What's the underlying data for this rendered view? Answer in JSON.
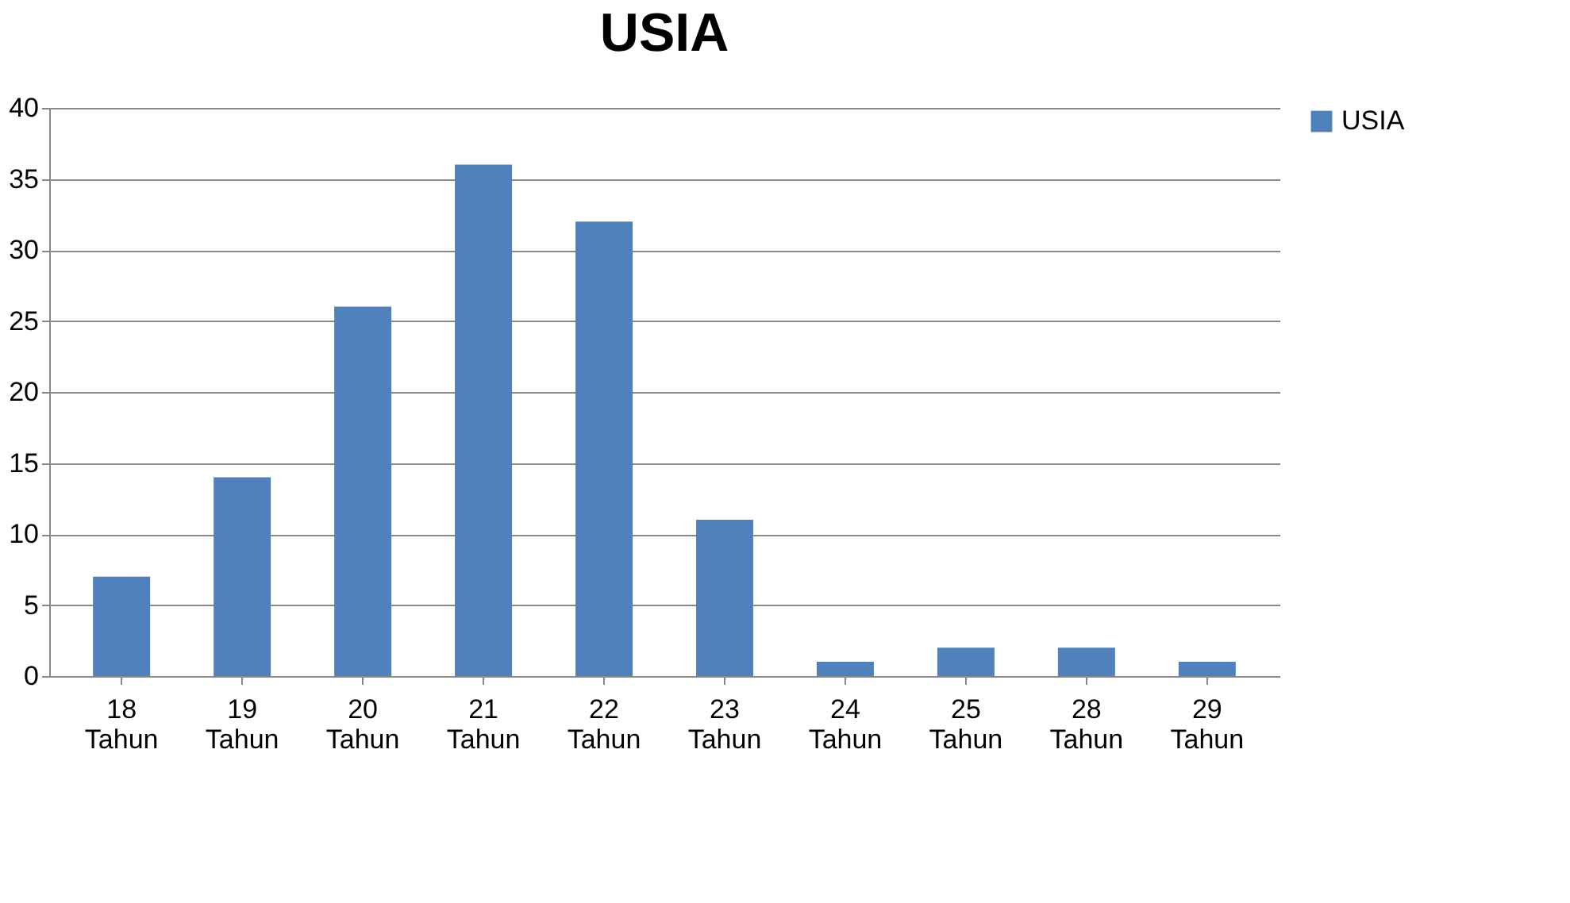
{
  "chart_data": {
    "type": "bar",
    "title": "USIA",
    "categories": [
      "18 Tahun",
      "19 Tahun",
      "20 Tahun",
      "21 Tahun",
      "22 Tahun",
      "23 Tahun",
      "24 Tahun",
      "25 Tahun",
      "28 Tahun",
      "29 Tahun"
    ],
    "series": [
      {
        "name": "USIA",
        "color": "#4f81bd",
        "values": [
          7,
          14,
          26,
          36,
          32,
          11,
          1,
          2,
          2,
          1
        ]
      }
    ],
    "ylim": [
      0,
      40
    ],
    "yticks": [
      0,
      5,
      10,
      15,
      20,
      25,
      30,
      35,
      40
    ],
    "grid": "y",
    "legend": "right"
  }
}
